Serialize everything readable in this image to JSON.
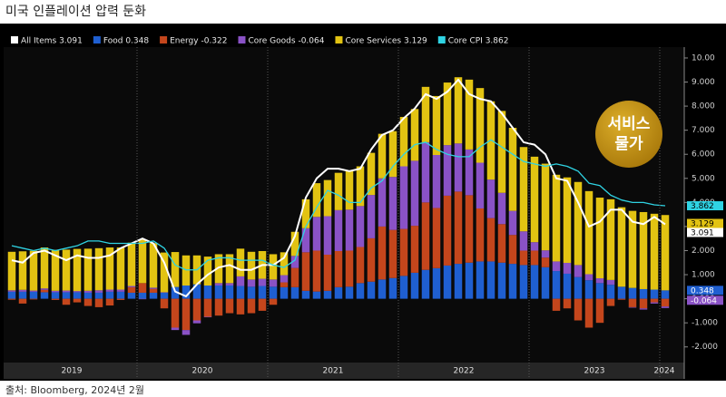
{
  "title": "미국 인플레이션 압력 둔화",
  "source": "출처: Bloomberg, 2024년 2월",
  "chart_data": {
    "type": "bar",
    "stacked": true,
    "annotation": [
      "서비스",
      "물가"
    ],
    "categories": [
      "2019",
      null,
      null,
      null,
      null,
      null,
      null,
      null,
      null,
      null,
      null,
      null,
      "2020",
      null,
      null,
      null,
      null,
      null,
      null,
      null,
      null,
      null,
      null,
      null,
      "2021",
      null,
      null,
      null,
      null,
      null,
      null,
      null,
      null,
      null,
      null,
      null,
      "2022",
      null,
      null,
      null,
      null,
      null,
      null,
      null,
      null,
      null,
      null,
      null,
      "2023",
      null,
      null,
      null,
      null,
      null,
      null,
      null,
      null,
      null,
      null,
      null,
      "2024"
    ],
    "ylim": [
      -2.65,
      10.45
    ],
    "yticks": [
      {
        "value": 10,
        "label": "10.00"
      },
      {
        "value": 9,
        "label": "9.000"
      },
      {
        "value": 8,
        "label": "8.000"
      },
      {
        "value": 7,
        "label": "7.000"
      },
      {
        "value": 6,
        "label": "6.000"
      },
      {
        "value": 5,
        "label": "5.000"
      },
      {
        "value": 4,
        "label": "4.000"
      },
      {
        "value": 3,
        "label": "3.000"
      },
      {
        "value": 2,
        "label": "2.000"
      },
      {
        "value": 1,
        "label": "1.000"
      },
      {
        "value": 0,
        "label": "0.000"
      },
      {
        "value": -1,
        "label": "-1.000"
      },
      {
        "value": -2,
        "label": "-2.000"
      }
    ],
    "grid": false,
    "series": [
      {
        "name": "All Items",
        "type": "line",
        "color": "#ffffff",
        "show_last_label": true,
        "values": [
          1.6,
          1.5,
          1.9,
          2.0,
          1.8,
          1.6,
          1.8,
          1.7,
          1.7,
          1.8,
          2.1,
          2.3,
          2.5,
          2.3,
          1.5,
          0.3,
          0.1,
          0.6,
          1.0,
          1.3,
          1.4,
          1.2,
          1.2,
          1.4,
          1.4,
          1.7,
          2.6,
          4.2,
          5.0,
          5.4,
          5.4,
          5.3,
          5.4,
          6.2,
          6.8,
          7.0,
          7.5,
          7.9,
          8.5,
          8.3,
          8.6,
          9.1,
          8.5,
          8.3,
          8.2,
          7.7,
          7.1,
          6.5,
          6.4,
          6.0,
          5.0,
          4.9,
          4.0,
          3.0,
          3.2,
          3.7,
          3.7,
          3.2,
          3.1,
          3.4,
          3.091
        ]
      },
      {
        "name": "Food",
        "type": "bar",
        "color": "#1f5fd1",
        "show_last_label": true,
        "values": [
          0.29,
          0.29,
          0.29,
          0.27,
          0.27,
          0.27,
          0.27,
          0.25,
          0.25,
          0.29,
          0.29,
          0.25,
          0.25,
          0.25,
          0.25,
          0.49,
          0.55,
          0.6,
          0.55,
          0.55,
          0.55,
          0.53,
          0.5,
          0.53,
          0.5,
          0.48,
          0.48,
          0.33,
          0.3,
          0.33,
          0.48,
          0.5,
          0.65,
          0.71,
          0.8,
          0.86,
          0.95,
          1.08,
          1.2,
          1.27,
          1.38,
          1.45,
          1.5,
          1.55,
          1.55,
          1.5,
          1.45,
          1.4,
          1.4,
          1.31,
          1.15,
          1.04,
          0.9,
          0.77,
          0.65,
          0.58,
          0.5,
          0.45,
          0.4,
          0.38,
          0.348
        ]
      },
      {
        "name": "Energy",
        "type": "bar",
        "color": "#c4461c",
        "show_last_label": false,
        "values": [
          -0.04,
          -0.2,
          -0.03,
          0.1,
          -0.05,
          -0.25,
          -0.15,
          -0.3,
          -0.35,
          -0.28,
          -0.05,
          0.23,
          0.4,
          0.16,
          -0.4,
          -1.2,
          -1.3,
          -0.9,
          -0.75,
          -0.7,
          -0.6,
          -0.65,
          -0.6,
          -0.5,
          -0.25,
          0.2,
          0.8,
          1.6,
          1.7,
          1.5,
          1.5,
          1.5,
          1.5,
          1.8,
          2.2,
          2.0,
          1.95,
          1.95,
          2.8,
          2.5,
          2.9,
          3.0,
          2.8,
          2.2,
          1.8,
          1.6,
          1.2,
          0.6,
          0.6,
          0.4,
          -0.5,
          -0.4,
          -0.9,
          -1.2,
          -1.0,
          -0.3,
          -0.04,
          -0.35,
          -0.4,
          -0.15,
          -0.322
        ]
      },
      {
        "name": "Core Goods",
        "type": "bar",
        "color": "#8a52c6",
        "show_last_label": true,
        "values": [
          0.06,
          0.08,
          0.05,
          0.06,
          0.06,
          0.07,
          0.05,
          0.08,
          0.1,
          0.09,
          0.09,
          0.05,
          -0.02,
          0.05,
          0.02,
          -0.1,
          -0.2,
          -0.12,
          -0.02,
          0.1,
          0.1,
          0.4,
          0.3,
          0.3,
          0.3,
          0.3,
          0.5,
          1.0,
          1.4,
          1.6,
          1.7,
          1.7,
          1.7,
          1.8,
          2.0,
          2.2,
          2.6,
          2.7,
          2.5,
          2.2,
          2.1,
          2.0,
          1.9,
          1.9,
          1.6,
          1.3,
          1.0,
          0.8,
          0.35,
          0.3,
          0.4,
          0.45,
          0.5,
          0.25,
          0.2,
          0.2,
          0.0,
          -0.02,
          -0.05,
          -0.05,
          -0.064
        ]
      },
      {
        "name": "Core Services",
        "type": "bar",
        "color": "#e2c312",
        "show_last_label": true,
        "values": [
          1.6,
          1.6,
          1.65,
          1.7,
          1.7,
          1.7,
          1.75,
          1.75,
          1.75,
          1.75,
          1.75,
          1.8,
          1.8,
          1.85,
          1.65,
          1.45,
          1.25,
          1.2,
          1.2,
          1.2,
          1.2,
          1.15,
          1.15,
          1.15,
          1.05,
          0.95,
          1.0,
          1.2,
          1.4,
          1.5,
          1.55,
          1.6,
          1.65,
          1.75,
          1.85,
          1.9,
          2.05,
          2.15,
          2.3,
          2.45,
          2.6,
          2.75,
          2.9,
          3.1,
          3.25,
          3.4,
          3.45,
          3.5,
          3.55,
          3.6,
          3.6,
          3.55,
          3.45,
          3.45,
          3.35,
          3.35,
          3.3,
          3.2,
          3.2,
          3.15,
          3.129
        ]
      },
      {
        "name": "Core CPI",
        "type": "line",
        "color": "#2fd3e3",
        "show_last_label": true,
        "values": [
          2.2,
          2.1,
          2.0,
          2.1,
          2.0,
          2.1,
          2.2,
          2.4,
          2.4,
          2.3,
          2.3,
          2.3,
          2.3,
          2.4,
          2.1,
          1.4,
          1.2,
          1.2,
          1.6,
          1.7,
          1.7,
          1.6,
          1.6,
          1.6,
          1.4,
          1.3,
          1.6,
          3.0,
          3.8,
          4.5,
          4.3,
          4.0,
          4.0,
          4.6,
          4.9,
          5.5,
          6.0,
          6.4,
          6.5,
          6.2,
          6.0,
          5.9,
          5.9,
          6.3,
          6.6,
          6.3,
          6.0,
          5.7,
          5.6,
          5.5,
          5.6,
          5.5,
          5.3,
          4.8,
          4.7,
          4.3,
          4.1,
          4.0,
          4.0,
          3.9,
          3.862
        ]
      }
    ]
  }
}
